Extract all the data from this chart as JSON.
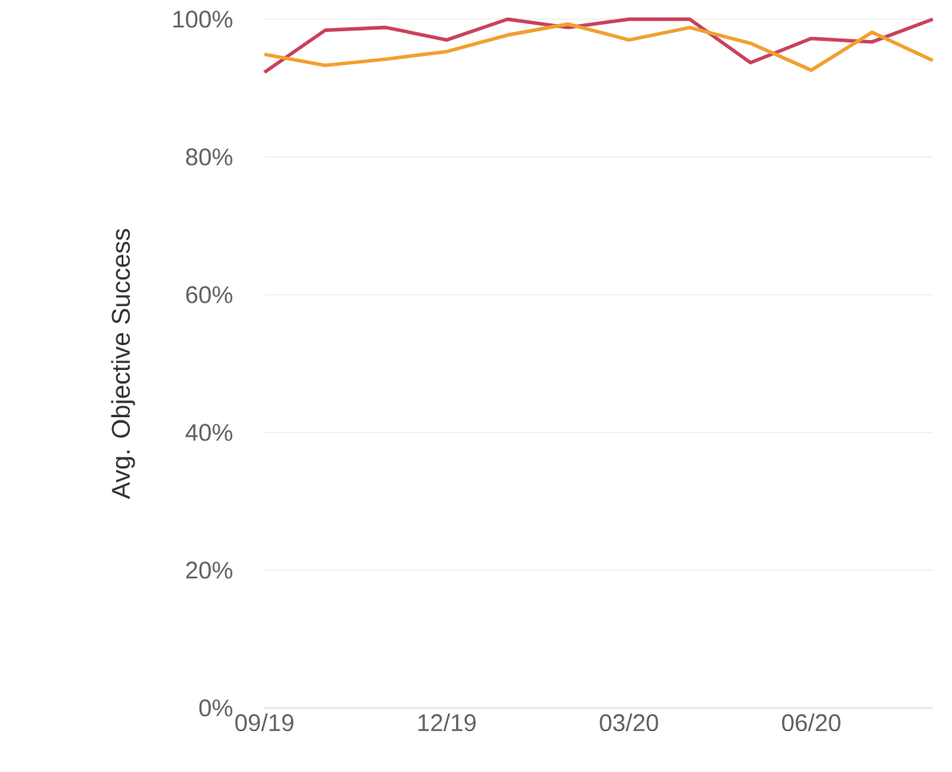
{
  "chart_data": {
    "type": "line",
    "ylabel": "Avg. Objective Success",
    "x": [
      "2019-09",
      "2019-10",
      "2019-11",
      "2019-12",
      "2020-01",
      "2020-02",
      "2020-03",
      "2020-04",
      "2020-05",
      "2020-06",
      "2020-07",
      "2020-08"
    ],
    "series": [
      {
        "color": "#c9415a",
        "values": [
          92.3,
          98.4,
          98.8,
          97.0,
          100,
          98.8,
          100,
          100,
          93.7,
          97.2,
          96.7,
          100
        ]
      },
      {
        "color": "#f0a030",
        "values": [
          94.9,
          93.3,
          94.2,
          95.3,
          97.7,
          99.3,
          97.0,
          98.8,
          96.5,
          92.6,
          98.1,
          94.0
        ]
      }
    ],
    "xlim": [
      "2019-09",
      "2020-08"
    ],
    "xticks": [
      {
        "value": "2019-09",
        "label": "09/19"
      },
      {
        "value": "2019-12",
        "label": "12/19"
      },
      {
        "value": "2020-03",
        "label": "03/20"
      },
      {
        "value": "2020-06",
        "label": "06/20"
      }
    ],
    "ylim": [
      0,
      100
    ],
    "yticks": [
      {
        "value": 0,
        "label": "0%"
      },
      {
        "value": 20,
        "label": "20%"
      },
      {
        "value": 40,
        "label": "40%"
      },
      {
        "value": 60,
        "label": "60%"
      },
      {
        "value": 80,
        "label": "80%"
      },
      {
        "value": 100,
        "label": "100%"
      }
    ],
    "grid": "y",
    "legend": false,
    "marker": "none",
    "line_style": "solid"
  }
}
